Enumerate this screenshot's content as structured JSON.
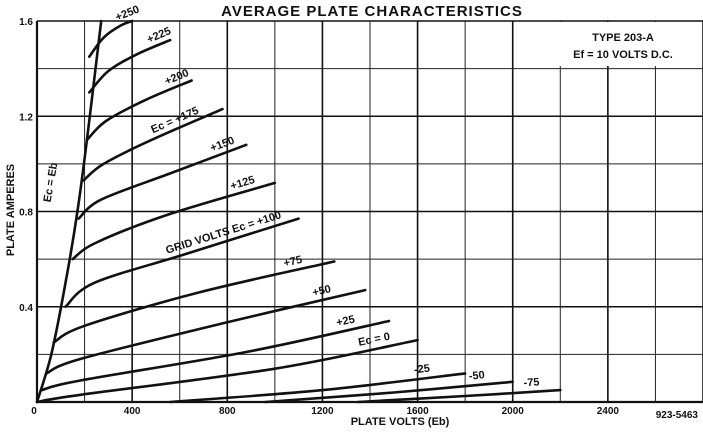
{
  "chart_data": {
    "type": "line",
    "title": "AVERAGE PLATE CHARACTERISTICS",
    "xlabel": "PLATE VOLTS (Eb)",
    "ylabel": "PLATE AMPERES",
    "xlim": [
      0,
      2800
    ],
    "ylim": [
      0,
      1.6
    ],
    "x_ticks": [
      {
        "value": 400,
        "label": "400"
      },
      {
        "value": 800,
        "label": "800"
      },
      {
        "value": 1200,
        "label": "1200"
      },
      {
        "value": 1600,
        "label": "1600"
      },
      {
        "value": 2000,
        "label": "2000"
      },
      {
        "value": 2400,
        "label": "2400"
      }
    ],
    "y_ticks": [
      {
        "value": 0.4,
        "label": "0.4"
      },
      {
        "value": 0.8,
        "label": "0.8"
      },
      {
        "value": 1.2,
        "label": "1.2"
      },
      {
        "value": 1.6,
        "label": "1.6"
      }
    ],
    "origin_label": "0",
    "grid": true,
    "info_box": {
      "line1": "TYPE 203-A",
      "line2": "Ef = 10 VOLTS D.C."
    },
    "figure_number": "923-5463",
    "boundary_curve": {
      "label": "Ec = Eb",
      "points": [
        [
          0,
          0
        ],
        [
          60,
          0.2
        ],
        [
          120,
          0.5
        ],
        [
          170,
          0.8
        ],
        [
          210,
          1.1
        ],
        [
          240,
          1.35
        ],
        [
          270,
          1.6
        ]
      ]
    },
    "series": [
      {
        "label": "+250",
        "points": [
          [
            220,
            1.45
          ],
          [
            280,
            1.53
          ],
          [
            350,
            1.58
          ],
          [
            400,
            1.6
          ]
        ]
      },
      {
        "label": "+225",
        "points": [
          [
            220,
            1.3
          ],
          [
            300,
            1.39
          ],
          [
            420,
            1.46
          ],
          [
            560,
            1.52
          ]
        ]
      },
      {
        "label": "+200",
        "points": [
          [
            210,
            1.1
          ],
          [
            290,
            1.18
          ],
          [
            460,
            1.27
          ],
          [
            650,
            1.35
          ]
        ]
      },
      {
        "label": "Ec = +175",
        "points": [
          [
            195,
            0.93
          ],
          [
            280,
            1.0
          ],
          [
            480,
            1.1
          ],
          [
            780,
            1.23
          ]
        ]
      },
      {
        "label": "+150",
        "points": [
          [
            175,
            0.77
          ],
          [
            270,
            0.85
          ],
          [
            560,
            0.96
          ],
          [
            880,
            1.08
          ]
        ]
      },
      {
        "label": "+125",
        "points": [
          [
            150,
            0.6
          ],
          [
            250,
            0.67
          ],
          [
            560,
            0.79
          ],
          [
            1000,
            0.92
          ]
        ]
      },
      {
        "label": "GRID VOLTS Ec = +100",
        "points": [
          [
            120,
            0.4
          ],
          [
            240,
            0.5
          ],
          [
            620,
            0.62
          ],
          [
            1100,
            0.77
          ]
        ]
      },
      {
        "label": "+75",
        "points": [
          [
            70,
            0.25
          ],
          [
            200,
            0.32
          ],
          [
            680,
            0.46
          ],
          [
            1250,
            0.59
          ]
        ]
      },
      {
        "label": "+50",
        "points": [
          [
            40,
            0.12
          ],
          [
            180,
            0.18
          ],
          [
            780,
            0.33
          ],
          [
            1380,
            0.47
          ]
        ]
      },
      {
        "label": "+25",
        "points": [
          [
            20,
            0.05
          ],
          [
            180,
            0.09
          ],
          [
            880,
            0.21
          ],
          [
            1480,
            0.34
          ]
        ]
      },
      {
        "label": "Ec = 0",
        "points": [
          [
            0,
            0.0
          ],
          [
            180,
            0.03
          ],
          [
            1000,
            0.14
          ],
          [
            1600,
            0.26
          ]
        ]
      },
      {
        "label": "-25",
        "points": [
          [
            560,
            0.0
          ],
          [
            1200,
            0.05
          ],
          [
            1800,
            0.12
          ]
        ]
      },
      {
        "label": "-50",
        "points": [
          [
            960,
            0.0
          ],
          [
            1500,
            0.04
          ],
          [
            2000,
            0.085
          ]
        ]
      },
      {
        "label": "-75",
        "points": [
          [
            1350,
            0.0
          ],
          [
            1800,
            0.025
          ],
          [
            2200,
            0.05
          ]
        ]
      }
    ]
  }
}
